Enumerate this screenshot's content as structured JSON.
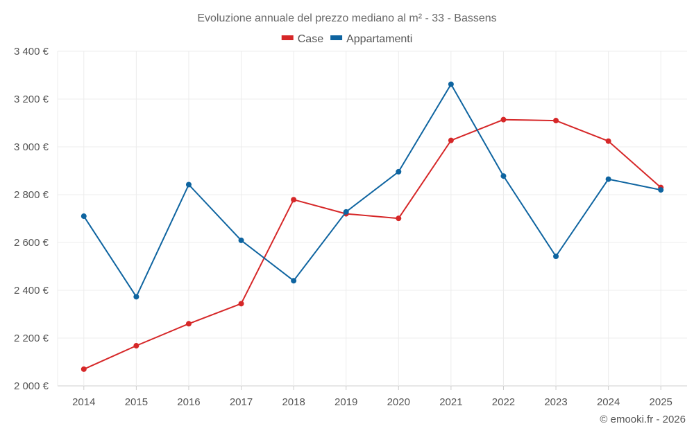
{
  "chart_data": {
    "type": "line",
    "title": "Evoluzione annuale del prezzo mediano al m² - 33 - Bassens",
    "categories": [
      "2014",
      "2015",
      "2016",
      "2017",
      "2018",
      "2019",
      "2020",
      "2021",
      "2022",
      "2023",
      "2024",
      "2025"
    ],
    "series": [
      {
        "name": "Case",
        "color": "#d62728",
        "values": [
          2070,
          2168,
          2260,
          2344,
          2779,
          2720,
          2701,
          3027,
          3114,
          3110,
          3024,
          2830
        ]
      },
      {
        "name": "Appartamenti",
        "color": "#0e64a0",
        "values": [
          2710,
          2373,
          2842,
          2609,
          2440,
          2728,
          2896,
          3262,
          2878,
          2542,
          2865,
          2820
        ]
      }
    ],
    "ylim": [
      2000,
      3400
    ],
    "yticks": [
      2000,
      2200,
      2400,
      2600,
      2800,
      3000,
      3200,
      3400
    ],
    "ytick_labels": [
      "2 000 €",
      "2 200 €",
      "2 400 €",
      "2 600 €",
      "2 800 €",
      "3 000 €",
      "3 200 €",
      "3 400 €"
    ],
    "xlabel": "",
    "ylabel": "",
    "grid": true,
    "legend": "top-center"
  },
  "credit": "© emooki.fr - 2026"
}
